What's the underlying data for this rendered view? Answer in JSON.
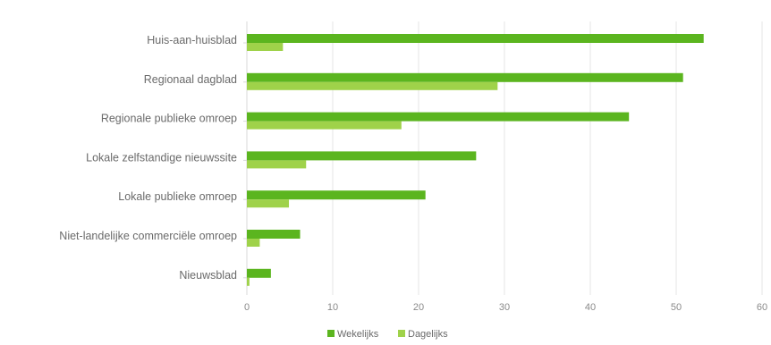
{
  "chart_data": {
    "type": "bar",
    "orientation": "horizontal",
    "categories": [
      "Huis-aan-huisblad",
      "Regionaal dagblad",
      "Regionale publieke omroep",
      "Lokale zelfstandige nieuwssite",
      "Lokale publieke omroep",
      "Niet-landelijke commerciële omroep",
      "Nieuwsblad"
    ],
    "series": [
      {
        "name": "Wekelijks",
        "color": "#5bb51f",
        "values": [
          53.2,
          50.8,
          44.5,
          26.7,
          20.8,
          6.2,
          2.8
        ]
      },
      {
        "name": "Dagelijks",
        "color": "#9fd24a",
        "values": [
          4.2,
          29.2,
          18.0,
          6.9,
          4.9,
          1.5,
          0.3
        ]
      }
    ],
    "xticks": [
      "0",
      "10",
      "20",
      "30",
      "40",
      "50",
      "60"
    ],
    "xlim": [
      0,
      60
    ],
    "grid": true,
    "legend_position": "bottom",
    "title": "",
    "xlabel": "",
    "ylabel": ""
  }
}
